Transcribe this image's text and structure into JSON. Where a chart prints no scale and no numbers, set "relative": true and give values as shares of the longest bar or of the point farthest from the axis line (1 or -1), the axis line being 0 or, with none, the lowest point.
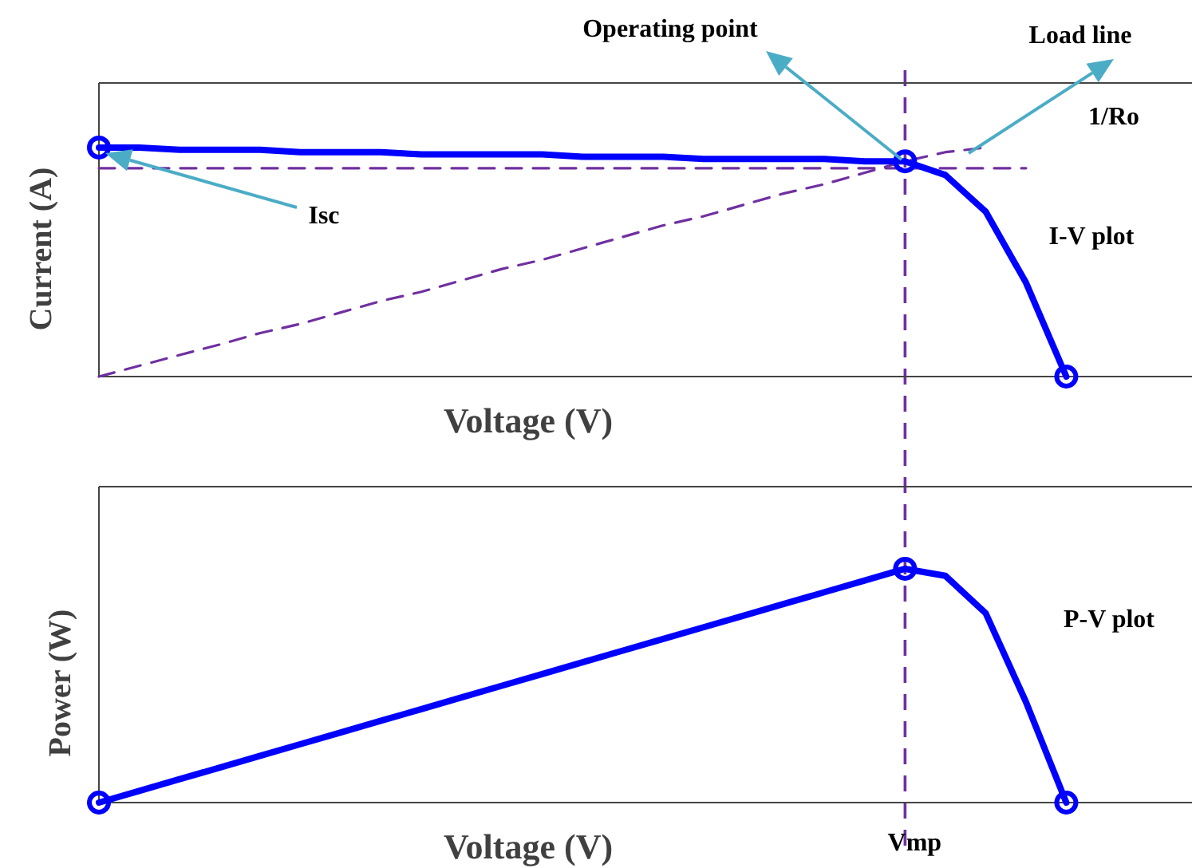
{
  "chart_data": [
    {
      "type": "line",
      "relative": true,
      "xlabel": "Voltage (V)",
      "ylabel": "Current (A)",
      "categories": [
        null,
        null,
        null,
        null,
        null,
        null,
        null,
        null,
        null,
        null,
        null,
        null,
        null,
        null,
        null,
        null,
        null,
        null,
        null,
        null,
        null,
        null,
        null,
        null,
        null,
        null,
        null,
        null
      ],
      "series": [
        {
          "color": "#7030a0",
          "line_style": "dashed",
          "values": [
            0.91,
            0.91,
            0.91,
            0.91,
            0.91,
            0.91,
            0.91,
            0.91,
            0.91,
            0.91,
            0.91,
            0.91,
            0.91,
            0.91,
            0.91,
            0.91,
            0.91,
            0.91,
            0.91,
            0.91,
            0.91,
            0.91,
            0.91,
            0.91,
            null,
            null,
            null,
            null
          ]
        },
        {
          "color": "#7030a0",
          "line_style": "dashed",
          "values": [
            0,
            0.047,
            0.094,
            0.14,
            0.19,
            0.23,
            0.28,
            0.33,
            0.37,
            0.42,
            0.47,
            0.51,
            0.56,
            0.61,
            0.66,
            0.7,
            0.75,
            0.8,
            0.84,
            0.89,
            0.94,
            0.98,
            1.0,
            null,
            null,
            null,
            null,
            null
          ]
        },
        {
          "color": "#0000ff",
          "line_style": "solid",
          "values": [
            1,
            1,
            0.99,
            0.99,
            0.99,
            0.98,
            0.98,
            0.98,
            0.97,
            0.97,
            0.97,
            0.97,
            0.96,
            0.96,
            0.96,
            0.95,
            0.95,
            0.95,
            0.95,
            0.94,
            0.94,
            0.88,
            0.72,
            0.41,
            0,
            null,
            null,
            null
          ]
        }
      ],
      "annotations": [
        "Operating point",
        "Load line",
        "1/Ro",
        "Isc",
        "I-V plot"
      ]
    },
    {
      "type": "line",
      "relative": true,
      "xlabel": "Voltage (V)",
      "ylabel": "Power (W)",
      "categories": [
        null,
        null,
        null,
        null,
        null,
        null,
        null,
        null,
        null,
        null,
        null,
        null,
        null,
        null,
        null,
        null,
        null,
        null,
        null,
        null,
        null,
        null,
        null,
        null,
        null,
        null,
        null,
        null
      ],
      "series": [
        {
          "color": "#0000ff",
          "line_style": "solid",
          "values": [
            0,
            0.05,
            0.1,
            0.15,
            0.2,
            0.25,
            0.3,
            0.35,
            0.4,
            0.45,
            0.5,
            0.55,
            0.6,
            0.65,
            0.7,
            0.75,
            0.8,
            0.85,
            0.9,
            0.95,
            1.0,
            0.97,
            0.81,
            0.43,
            0,
            null,
            null,
            null
          ]
        }
      ],
      "annotations": [
        "P-V plot",
        "Vmp"
      ]
    }
  ]
}
